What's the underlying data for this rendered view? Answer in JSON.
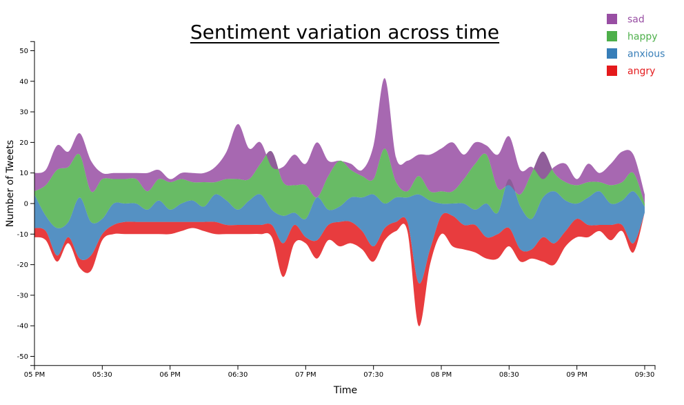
{
  "chart_data": {
    "type": "area",
    "title": "Sentiment variation across time",
    "xlabel": "Time",
    "ylabel": "Number of Tweets",
    "ylim": [
      -53,
      53
    ],
    "xlim": [
      "05 PM",
      "09:30"
    ],
    "yticks": [
      -50,
      -40,
      -30,
      -20,
      -10,
      0,
      10,
      20,
      30,
      40,
      50
    ],
    "xticks": [
      "05 PM",
      "05:30",
      "06 PM",
      "06:30",
      "07 PM",
      "07:30",
      "08 PM",
      "08:30",
      "09 PM",
      "09:30"
    ],
    "grid": false,
    "legend_position": "top-right",
    "baseline": "wiggle (streamgraph)",
    "x": [
      0,
      5,
      10,
      15,
      20,
      25,
      30,
      35,
      40,
      45,
      50,
      55,
      60,
      65,
      70,
      75,
      80,
      85,
      90,
      95,
      100,
      105,
      110,
      115,
      120,
      125,
      130,
      135,
      140,
      145,
      150,
      155,
      160,
      165,
      170,
      175,
      180,
      185,
      190,
      195,
      200,
      205,
      210,
      215,
      220,
      225,
      230,
      235,
      240,
      245,
      250,
      255,
      260,
      265,
      270
    ],
    "x_unit": "minutes after 05 PM",
    "series": [
      {
        "name": "angry",
        "color": "#e41a1c",
        "y0": [
          -11,
          -12,
          -19,
          -13,
          -21,
          -22,
          -12,
          -10,
          -10,
          -10,
          -10,
          -10,
          -10,
          -9,
          -8,
          -9,
          -10,
          -10,
          -10,
          -10,
          -10,
          -11,
          -24,
          -13,
          -13,
          -18,
          -12,
          -14,
          -13,
          -15,
          -19,
          -12,
          -9,
          -9,
          -40,
          -20,
          -10,
          -14,
          -15,
          -16,
          -18,
          -18,
          -14,
          -19,
          -18,
          -19,
          -20,
          -14,
          -11,
          -11,
          -9,
          -12,
          -9,
          -16,
          -3
        ],
        "y1": [
          -8,
          -9,
          -17,
          -11,
          -18,
          -17,
          -10,
          -7,
          -6,
          -6,
          -6,
          -6,
          -6,
          -6,
          -6,
          -6,
          -6,
          -7,
          -7,
          -7,
          -7,
          -7,
          -13,
          -7,
          -11,
          -12,
          -7,
          -6,
          -6,
          -9,
          -14,
          -8,
          -6,
          -6,
          -26,
          -15,
          -4,
          -4,
          -7,
          -7,
          -11,
          -10,
          -8,
          -15,
          -15,
          -11,
          -13,
          -9,
          -5,
          -7,
          -7,
          -7,
          -7,
          -13,
          -3
        ]
      },
      {
        "name": "anxious",
        "color": "#377eb8",
        "y0": [
          -8,
          -9,
          -17,
          -11,
          -18,
          -17,
          -10,
          -7,
          -6,
          -6,
          -6,
          -6,
          -6,
          -6,
          -6,
          -6,
          -6,
          -7,
          -7,
          -7,
          -7,
          -7,
          -13,
          -7,
          -11,
          -12,
          -7,
          -6,
          -6,
          -9,
          -14,
          -8,
          -6,
          -6,
          -26,
          -15,
          -4,
          -4,
          -7,
          -7,
          -11,
          -10,
          -8,
          -15,
          -15,
          -11,
          -13,
          -9,
          -5,
          -7,
          -7,
          -7,
          -7,
          -13,
          -3
        ],
        "y1": [
          3,
          -4,
          -8,
          -6,
          2,
          -6,
          -5,
          0,
          0,
          0,
          -2,
          1,
          -2,
          0,
          1,
          -1,
          3,
          1,
          -2,
          1,
          3,
          -2,
          -4,
          -3,
          -5,
          2,
          -2,
          -1,
          2,
          2,
          3,
          0,
          2,
          2,
          3,
          1,
          0,
          0,
          0,
          -2,
          0,
          -3,
          8,
          -1,
          -5,
          2,
          4,
          1,
          0,
          2,
          4,
          0,
          1,
          4,
          -1
        ]
      },
      {
        "name": "happy",
        "color": "#4daf4a",
        "y0": [
          3,
          -4,
          -8,
          -6,
          2,
          -6,
          -5,
          0,
          0,
          0,
          -2,
          1,
          -2,
          0,
          1,
          -1,
          3,
          1,
          -2,
          1,
          3,
          -2,
          -4,
          -3,
          -5,
          2,
          -2,
          -1,
          2,
          2,
          3,
          0,
          2,
          2,
          3,
          1,
          0,
          0,
          0,
          -2,
          0,
          -3,
          8,
          -1,
          -5,
          2,
          4,
          1,
          0,
          2,
          4,
          0,
          1,
          4,
          -1
        ],
        "y1": [
          4,
          6,
          11,
          12,
          16,
          4,
          8,
          8,
          8,
          8,
          4,
          8,
          7,
          8,
          7,
          7,
          7,
          8,
          8,
          8,
          13,
          17,
          7,
          6,
          6,
          2,
          9,
          14,
          11,
          9,
          8,
          18,
          7,
          4,
          9,
          4,
          4,
          4,
          8,
          13,
          16,
          5,
          6,
          3,
          10,
          17,
          10,
          7,
          6,
          7,
          7,
          6,
          7,
          10,
          0
        ]
      },
      {
        "name": "sad",
        "color": "#984ea3",
        "y0": [
          4,
          6,
          11,
          12,
          16,
          4,
          8,
          8,
          8,
          8,
          4,
          8,
          7,
          8,
          7,
          7,
          7,
          8,
          8,
          8,
          13,
          17,
          7,
          6,
          6,
          2,
          9,
          14,
          11,
          9,
          8,
          18,
          7,
          4,
          9,
          4,
          4,
          4,
          8,
          13,
          16,
          5,
          6,
          3,
          10,
          17,
          10,
          7,
          6,
          7,
          7,
          6,
          7,
          10,
          0
        ],
        "y1": [
          10,
          11,
          19,
          17,
          23,
          14,
          10,
          10,
          10,
          10,
          10,
          11,
          8,
          10,
          10,
          10,
          12,
          17,
          26,
          18,
          20,
          12,
          12,
          16,
          13,
          20,
          14,
          14,
          13,
          11,
          19,
          41,
          15,
          14,
          16,
          16,
          18,
          20,
          16,
          20,
          19,
          16,
          22,
          11,
          12,
          8,
          12,
          13,
          8,
          13,
          10,
          13,
          17,
          16,
          3
        ]
      }
    ]
  },
  "legend": {
    "items": [
      {
        "label": "sad",
        "color": "#984ea3"
      },
      {
        "label": "happy",
        "color": "#4daf4a"
      },
      {
        "label": "anxious",
        "color": "#377eb8"
      },
      {
        "label": "angry",
        "color": "#e41a1c"
      }
    ]
  }
}
